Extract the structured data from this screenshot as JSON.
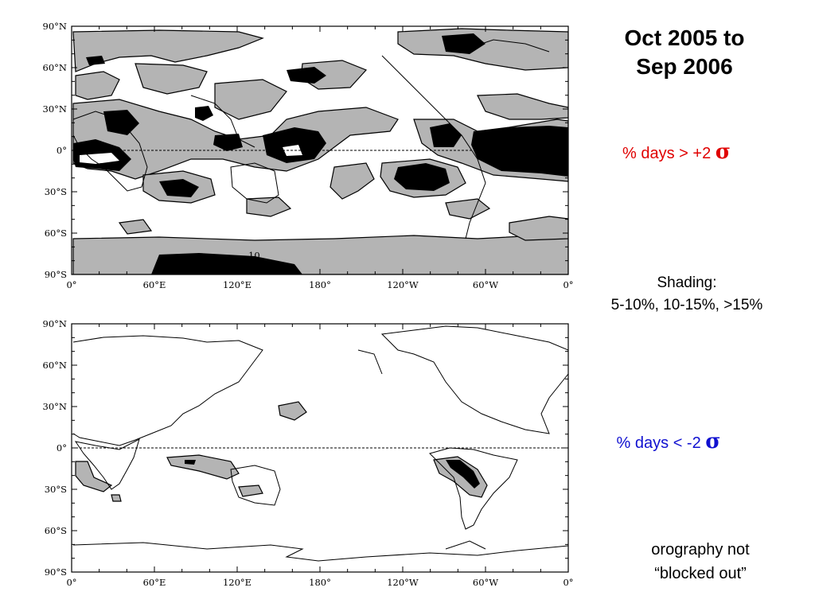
{
  "title": {
    "line1": "Oct 2005 to",
    "line2": "Sep 2006"
  },
  "positive_label": {
    "text": "% days > +2",
    "symbol": "σ",
    "color": "#e00000"
  },
  "negative_label": {
    "text": "% days <  -2",
    "symbol": "σ",
    "color": "#1010d0"
  },
  "shading_note": {
    "line1": "Shading:",
    "line2": "5-10%, 10-15%, >15%"
  },
  "orography_note": {
    "line1": "orography not",
    "line2": "“blocked out”"
  },
  "lat_labels": [
    "90°N",
    "60°N",
    "30°N",
    "0°",
    "30°S",
    "60°S",
    "90°S"
  ],
  "lon_labels": [
    "0°",
    "60°E",
    "120°E",
    "180°",
    "120°W",
    "60°W",
    "0°"
  ],
  "contour_label": "10",
  "shading_colors": {
    "light": "#b4b4b4",
    "dark": "#000000"
  }
}
